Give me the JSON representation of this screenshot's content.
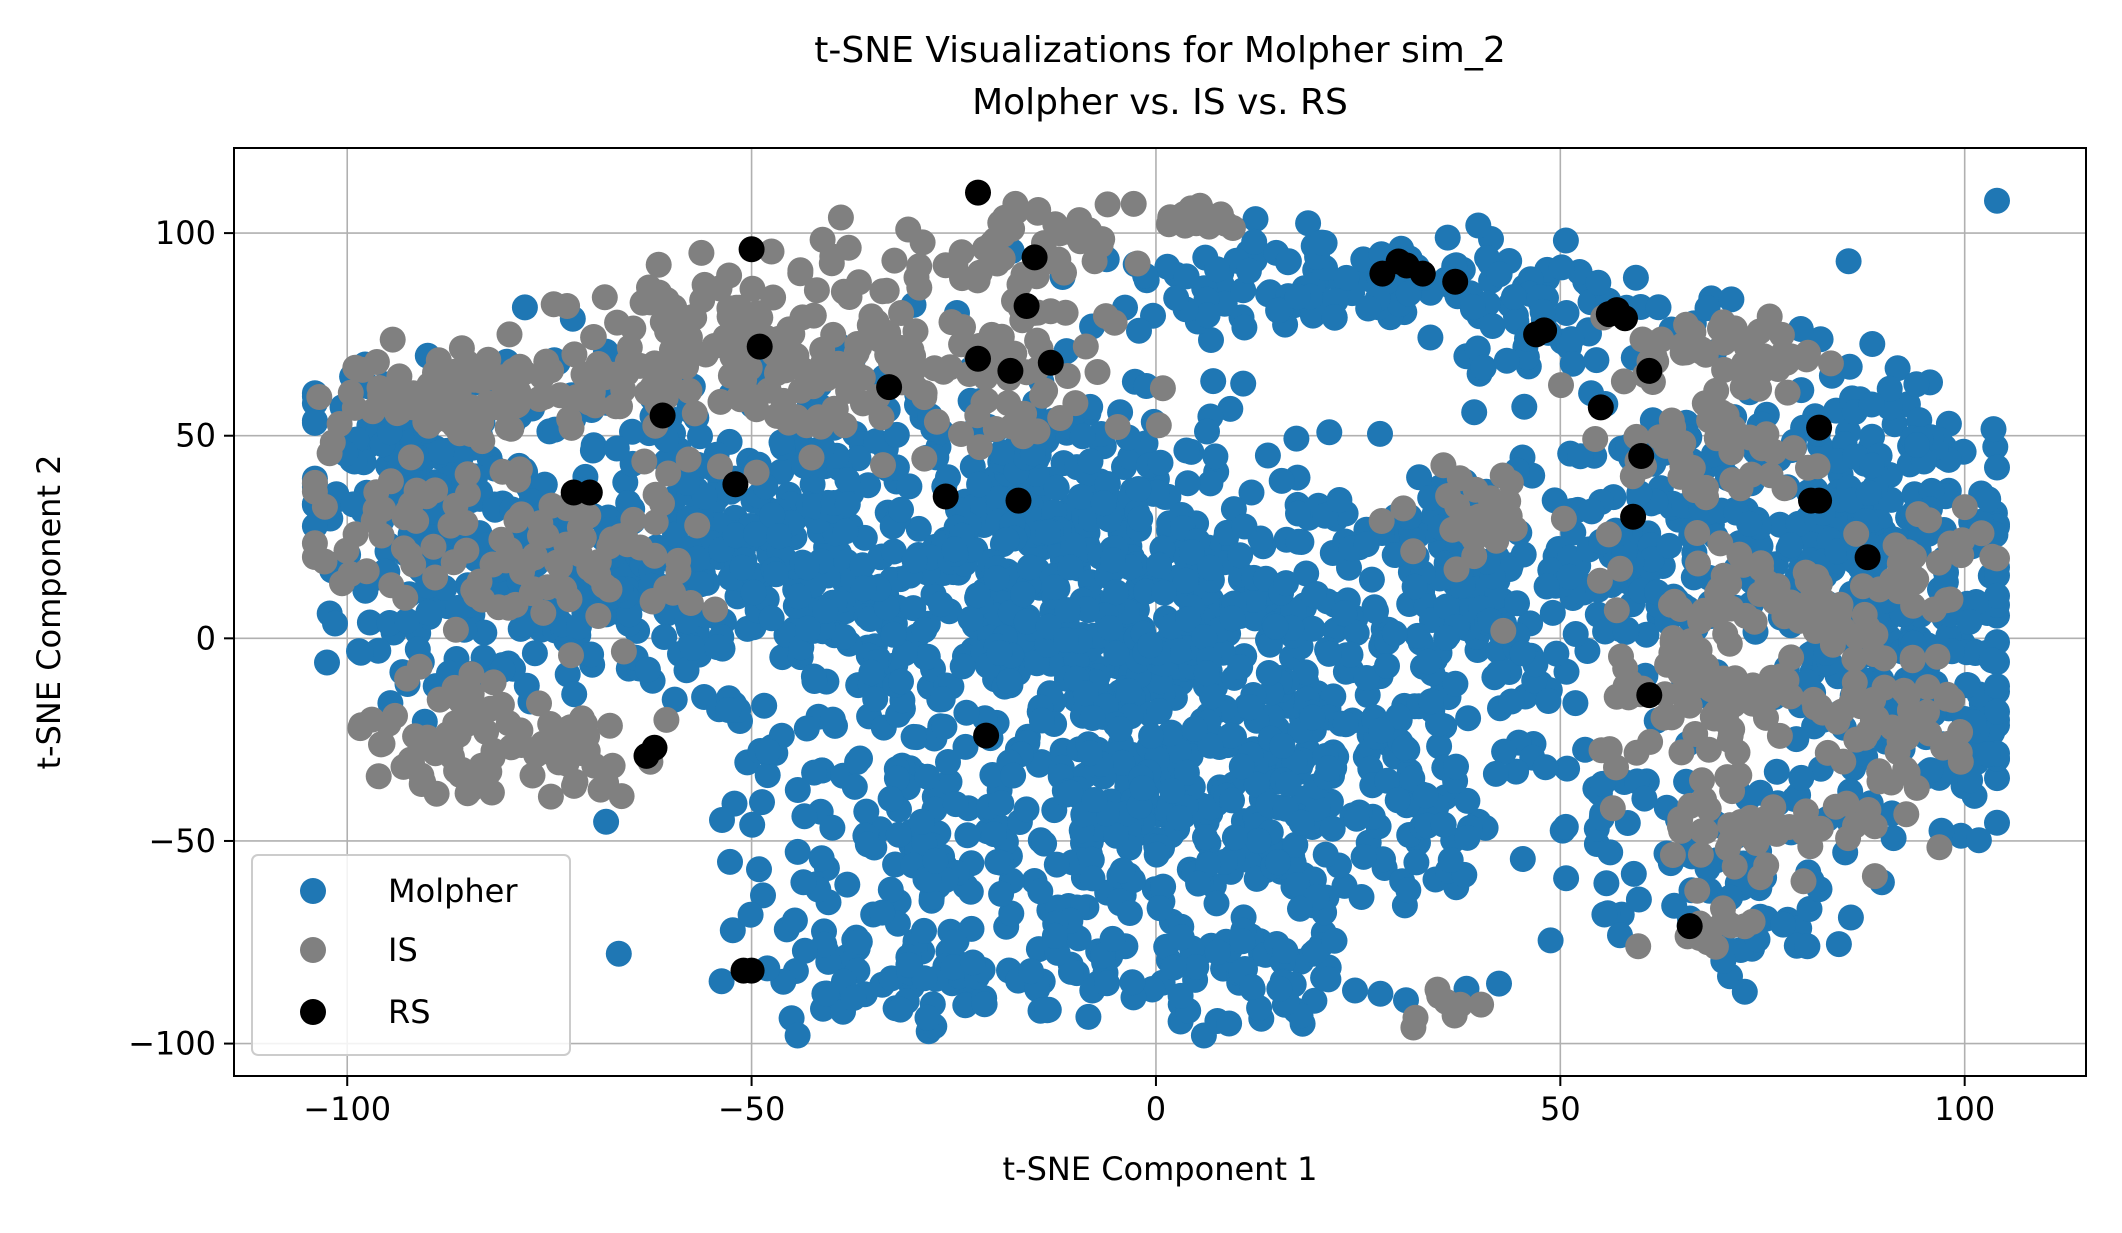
{
  "chart_data": {
    "type": "scatter",
    "title": "t-SNE Visualizations for Molpher sim_2",
    "subtitle": "Molpher vs. IS vs. RS",
    "xlabel": "t-SNE Component 1",
    "ylabel": "t-SNE Component 2",
    "xlim": [
      -114,
      115
    ],
    "ylim": [
      -108,
      121
    ],
    "xticks": [
      -100,
      -50,
      0,
      50,
      100
    ],
    "yticks": [
      -100,
      -50,
      0,
      50,
      100
    ],
    "xtick_labels": [
      "−100",
      "−50",
      "0",
      "50",
      "100"
    ],
    "ytick_labels": [
      "−100",
      "−50",
      "0",
      "50",
      "100"
    ],
    "grid": true,
    "legend_position": "lower-left",
    "series": [
      {
        "name": "Molpher",
        "color": "#1f77b4",
        "clusters": [
          {
            "cx": -88,
            "cy": 40,
            "sx": 10,
            "sy": 14,
            "n": 170
          },
          {
            "cx": -78,
            "cy": 8,
            "sx": 12,
            "sy": 12,
            "n": 140
          },
          {
            "cx": -55,
            "cy": 30,
            "sx": 14,
            "sy": 18,
            "n": 200
          },
          {
            "cx": -35,
            "cy": 5,
            "sx": 15,
            "sy": 20,
            "n": 220
          },
          {
            "cx": -10,
            "cy": 35,
            "sx": 13,
            "sy": 16,
            "n": 200
          },
          {
            "cx": 0,
            "cy": 0,
            "sx": 12,
            "sy": 14,
            "n": 260
          },
          {
            "cx": 5,
            "cy": -45,
            "sx": 14,
            "sy": 20,
            "n": 280
          },
          {
            "cx": -25,
            "cy": -50,
            "sx": 14,
            "sy": 18,
            "n": 150
          },
          {
            "cx": -30,
            "cy": -85,
            "sx": 12,
            "sy": 6,
            "n": 60
          },
          {
            "cx": 10,
            "cy": -85,
            "sx": 12,
            "sy": 7,
            "n": 60
          },
          {
            "cx": 20,
            "cy": 88,
            "sx": 16,
            "sy": 6,
            "n": 110
          },
          {
            "cx": 45,
            "cy": 80,
            "sx": 8,
            "sy": 8,
            "n": 50
          },
          {
            "cx": 30,
            "cy": 10,
            "sx": 13,
            "sy": 18,
            "n": 170
          },
          {
            "cx": 35,
            "cy": -40,
            "sx": 12,
            "sy": 18,
            "n": 100
          },
          {
            "cx": 65,
            "cy": 25,
            "sx": 14,
            "sy": 25,
            "n": 230
          },
          {
            "cx": 90,
            "cy": 20,
            "sx": 10,
            "sy": 22,
            "n": 200
          },
          {
            "cx": 70,
            "cy": -60,
            "sx": 8,
            "sy": 12,
            "n": 70
          },
          {
            "cx": 95,
            "cy": -20,
            "sx": 7,
            "sy": 14,
            "n": 70
          }
        ]
      },
      {
        "name": "IS",
        "color": "#808080",
        "clusters": [
          {
            "cx": -85,
            "cy": 60,
            "sx": 8,
            "sy": 6,
            "n": 80
          },
          {
            "cx": -62,
            "cy": 70,
            "sx": 8,
            "sy": 8,
            "n": 60
          },
          {
            "cx": -90,
            "cy": 28,
            "sx": 8,
            "sy": 12,
            "n": 60
          },
          {
            "cx": -85,
            "cy": -25,
            "sx": 8,
            "sy": 8,
            "n": 60
          },
          {
            "cx": -72,
            "cy": -28,
            "sx": 6,
            "sy": 6,
            "n": 30
          },
          {
            "cx": -70,
            "cy": 20,
            "sx": 8,
            "sy": 10,
            "n": 60
          },
          {
            "cx": -45,
            "cy": 70,
            "sx": 10,
            "sy": 14,
            "n": 110
          },
          {
            "cx": -22,
            "cy": 65,
            "sx": 8,
            "sy": 12,
            "n": 70
          },
          {
            "cx": -18,
            "cy": 95,
            "sx": 6,
            "sy": 6,
            "n": 40
          },
          {
            "cx": 5,
            "cy": 104,
            "sx": 3,
            "sy": 2,
            "n": 15
          },
          {
            "cx": 40,
            "cy": 30,
            "sx": 5,
            "sy": 6,
            "n": 30
          },
          {
            "cx": 70,
            "cy": 70,
            "sx": 6,
            "sy": 5,
            "n": 50
          },
          {
            "cx": 70,
            "cy": 45,
            "sx": 6,
            "sy": 8,
            "n": 40
          },
          {
            "cx": 75,
            "cy": 10,
            "sx": 10,
            "sy": 8,
            "n": 60
          },
          {
            "cx": 70,
            "cy": -15,
            "sx": 8,
            "sy": 8,
            "n": 70
          },
          {
            "cx": 75,
            "cy": -45,
            "sx": 8,
            "sy": 8,
            "n": 50
          },
          {
            "cx": 90,
            "cy": -20,
            "sx": 6,
            "sy": 10,
            "n": 50
          },
          {
            "cx": 95,
            "cy": 20,
            "sx": 4,
            "sy": 8,
            "n": 25
          },
          {
            "cx": 68,
            "cy": -72,
            "sx": 3,
            "sy": 3,
            "n": 12
          },
          {
            "cx": 35,
            "cy": -90,
            "sx": 3,
            "sy": 2,
            "n": 8
          }
        ]
      },
      {
        "name": "RS",
        "color": "#000000",
        "points": [
          [
            -22,
            110
          ],
          [
            -50,
            96
          ],
          [
            -15,
            94
          ],
          [
            -49,
            72
          ],
          [
            -16,
            82
          ],
          [
            -22,
            69
          ],
          [
            -18,
            66
          ],
          [
            -13,
            68
          ],
          [
            -33,
            62
          ],
          [
            -61,
            55
          ],
          [
            -52,
            38
          ],
          [
            -72,
            36
          ],
          [
            -70,
            36
          ],
          [
            -26,
            35
          ],
          [
            -17,
            34
          ],
          [
            -21,
            -24
          ],
          [
            -62,
            -27
          ],
          [
            -63,
            -29
          ],
          [
            -51,
            -82
          ],
          [
            -50,
            -82
          ],
          [
            28,
            90
          ],
          [
            30,
            93
          ],
          [
            33,
            90
          ],
          [
            37,
            88
          ],
          [
            31,
            92
          ],
          [
            48,
            76
          ],
          [
            47,
            75
          ],
          [
            56,
            80
          ],
          [
            57,
            81
          ],
          [
            58,
            79
          ],
          [
            61,
            66
          ],
          [
            55,
            57
          ],
          [
            60,
            45
          ],
          [
            59,
            30
          ],
          [
            82,
            52
          ],
          [
            81,
            34
          ],
          [
            82,
            34
          ],
          [
            88,
            20
          ],
          [
            61,
            -14
          ],
          [
            66,
            -71
          ]
        ]
      }
    ]
  }
}
